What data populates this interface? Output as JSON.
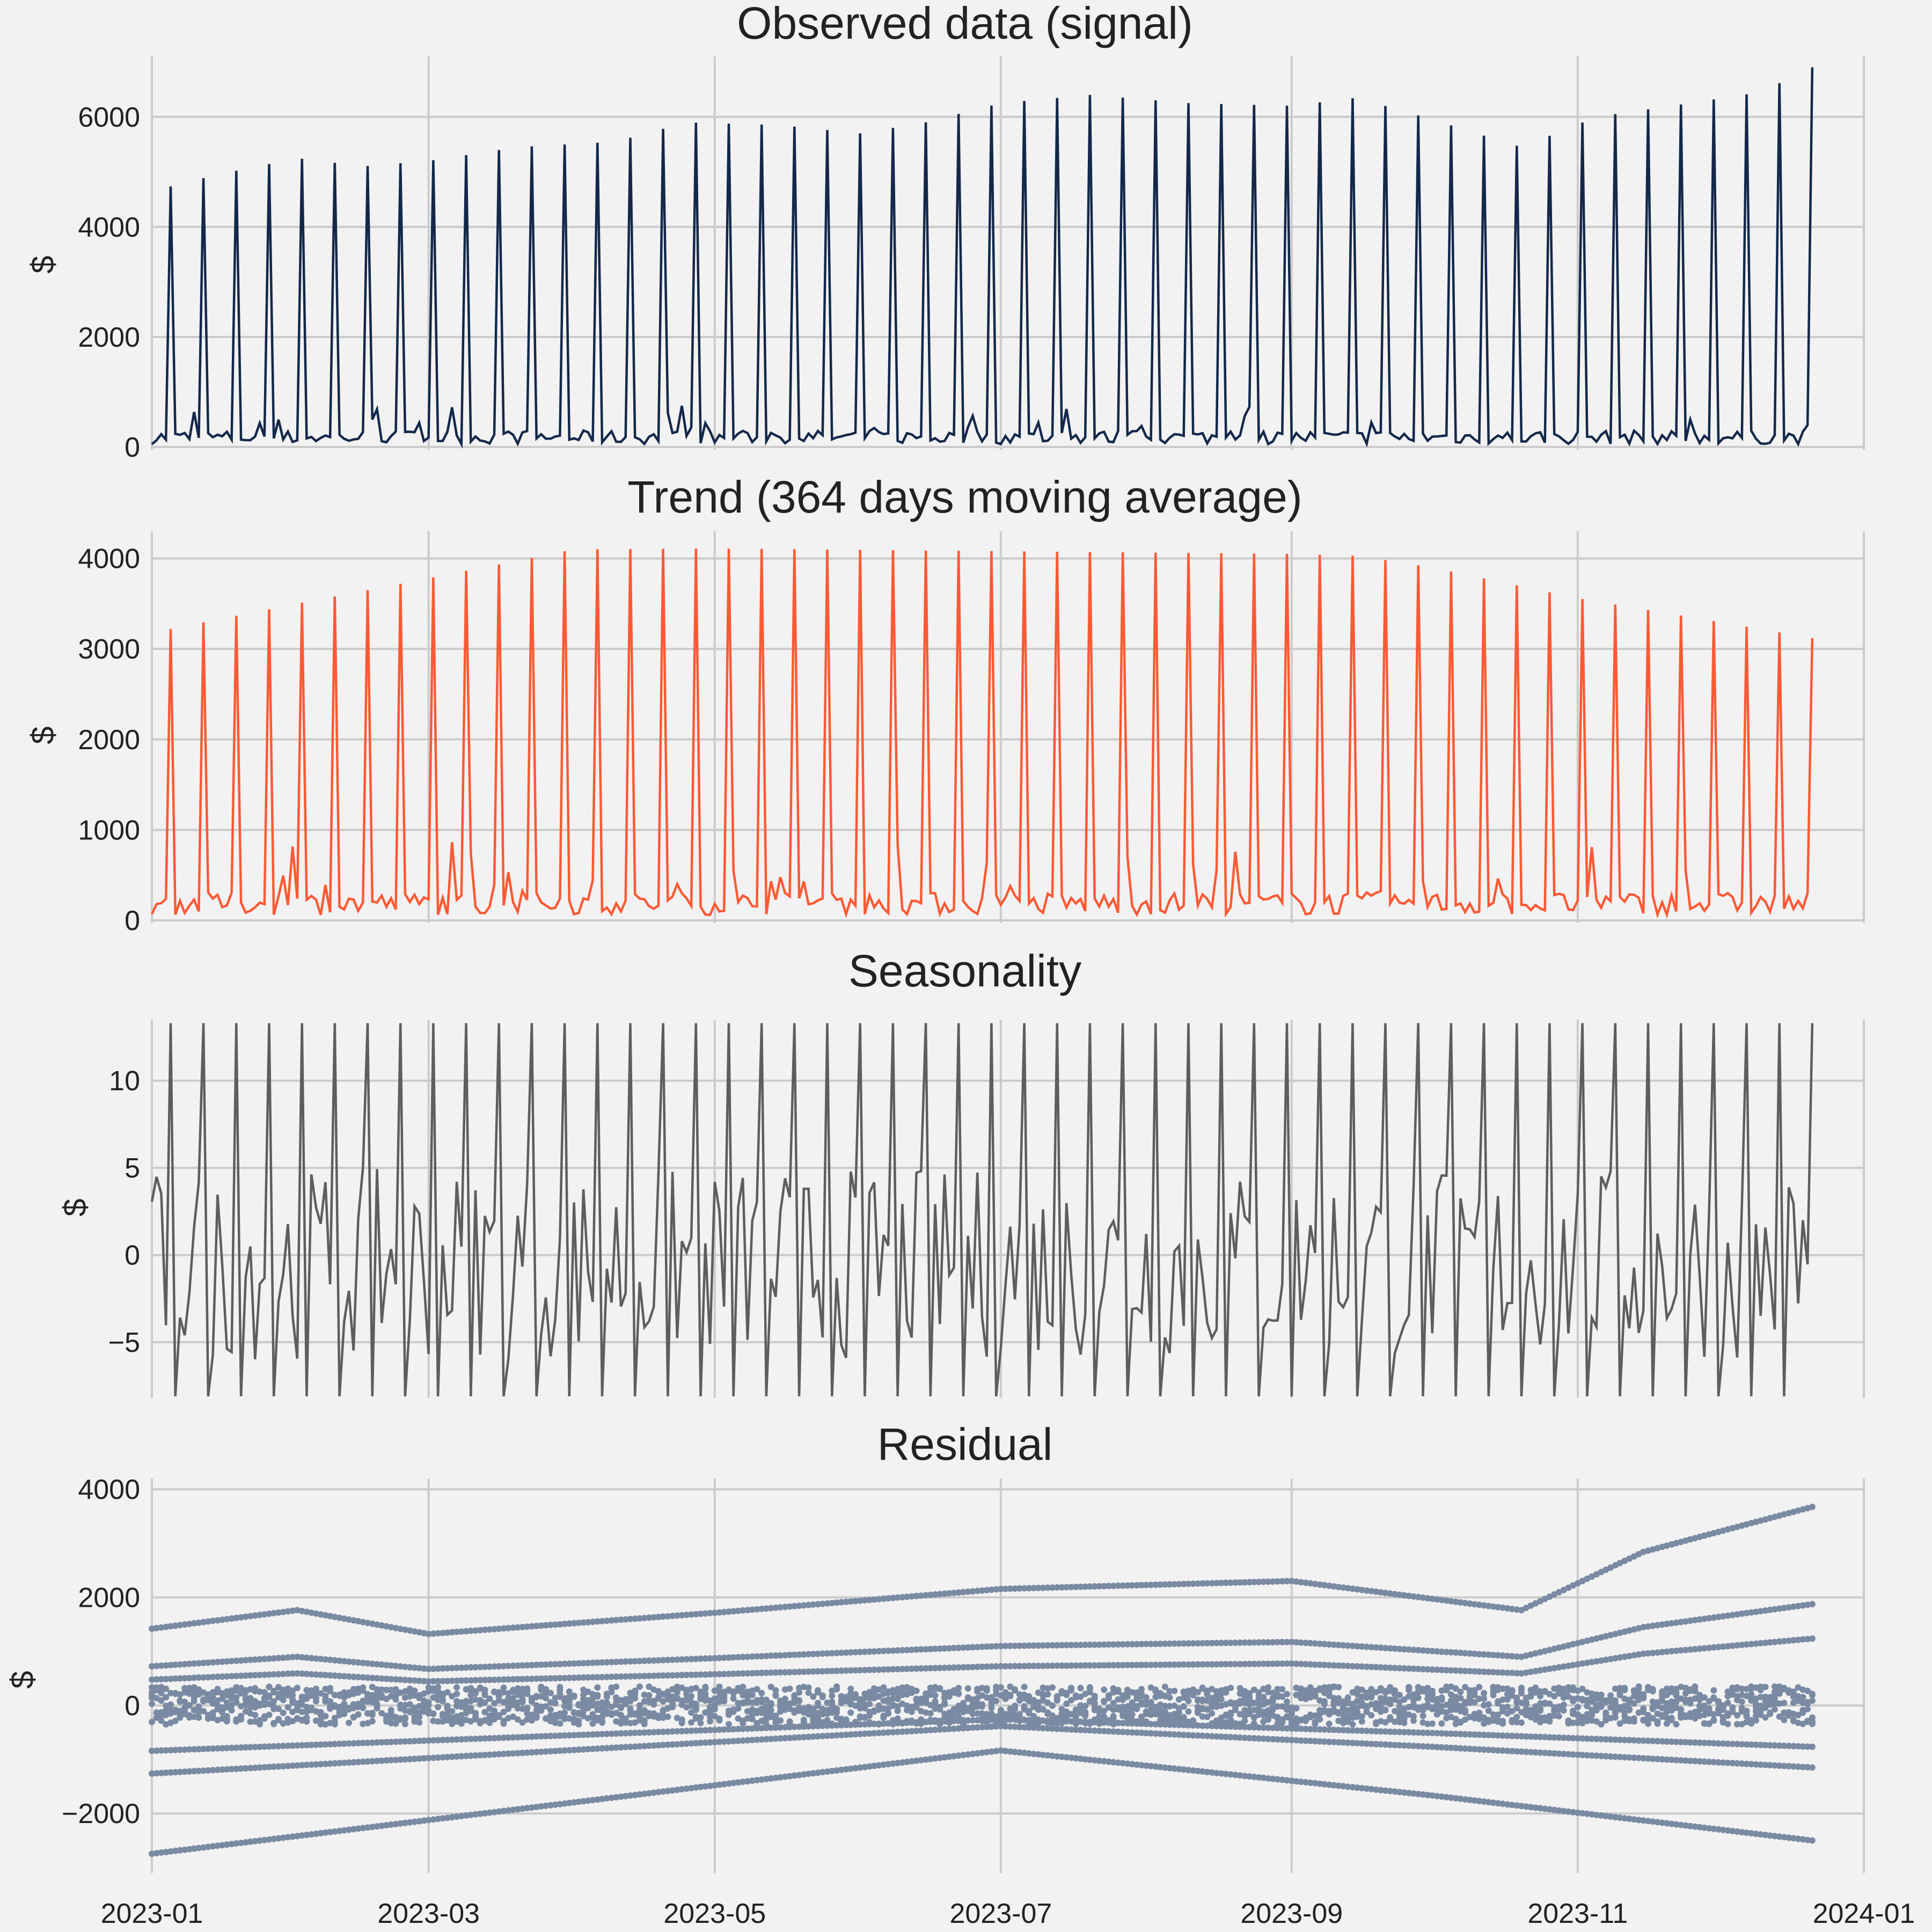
{
  "colors": {
    "background": "#f2f2f2",
    "grid": "#cbcbcb",
    "observed": "#14284b",
    "trend": "#fc5a35",
    "seasonal": "#5e5e5e",
    "residual": "#7a8aa3"
  },
  "chart_data": [
    {
      "type": "line",
      "title": "Observed data (signal)",
      "ylabel": "$",
      "xlim": [
        "2023-01-01",
        "2024-01-01"
      ],
      "ylim": [
        -50,
        7100
      ],
      "yticks": [
        0,
        2000,
        4000,
        6000
      ],
      "ytick_labels": [
        "0",
        "2000",
        "4000",
        "6000"
      ],
      "grid": true,
      "sample_rate": "daily, 2023-01-01 to 2023-12-21",
      "weekly_shape": {
        "peak_weekday": "Thu",
        "low_value": 50
      },
      "level_knots": [
        {
          "x": "2023-01-01",
          "y": 4650
        },
        {
          "x": "2023-01-15",
          "y": 4950
        },
        {
          "x": "2023-02-01",
          "y": 5250
        },
        {
          "x": "2023-02-15",
          "y": 5100
        },
        {
          "x": "2023-03-01",
          "y": 5200
        },
        {
          "x": "2023-03-20",
          "y": 5450
        },
        {
          "x": "2023-04-10",
          "y": 5550
        },
        {
          "x": "2023-04-25",
          "y": 5900
        },
        {
          "x": "2023-05-15",
          "y": 5850
        },
        {
          "x": "2023-06-01",
          "y": 5700
        },
        {
          "x": "2023-06-15",
          "y": 5900
        },
        {
          "x": "2023-07-01",
          "y": 6250
        },
        {
          "x": "2023-07-20",
          "y": 6400
        },
        {
          "x": "2023-08-10",
          "y": 6250
        },
        {
          "x": "2023-09-01",
          "y": 6200
        },
        {
          "x": "2023-09-15",
          "y": 6350
        },
        {
          "x": "2023-10-01",
          "y": 5950
        },
        {
          "x": "2023-10-20",
          "y": 5450
        },
        {
          "x": "2023-11-05",
          "y": 6000
        },
        {
          "x": "2023-11-25",
          "y": 6250
        },
        {
          "x": "2023-12-10",
          "y": 6450
        },
        {
          "x": "2023-12-21",
          "y": 6900
        }
      ]
    },
    {
      "type": "line",
      "title": "Trend (364 days moving average)",
      "ylabel": "$",
      "xlim": [
        "2023-01-01",
        "2024-01-01"
      ],
      "ylim": [
        -30,
        4300
      ],
      "yticks": [
        0,
        1000,
        2000,
        3000,
        4000
      ],
      "ytick_labels": [
        "0",
        "1000",
        "2000",
        "3000",
        "4000"
      ],
      "grid": true,
      "sample_rate": "daily, 2023-01-01 to 2023-12-21",
      "weekly_shape": {
        "peak_weekday": "Thu",
        "low_value": 60
      },
      "level_knots": [
        {
          "x": "2023-01-01",
          "y": 3180
        },
        {
          "x": "2023-02-01",
          "y": 3500
        },
        {
          "x": "2023-03-01",
          "y": 3780
        },
        {
          "x": "2023-04-01",
          "y": 4100
        },
        {
          "x": "2023-05-01",
          "y": 4110
        },
        {
          "x": "2023-07-01",
          "y": 4080
        },
        {
          "x": "2023-09-01",
          "y": 4050
        },
        {
          "x": "2023-09-15",
          "y": 4030
        },
        {
          "x": "2023-10-01",
          "y": 3900
        },
        {
          "x": "2023-11-01",
          "y": 3560
        },
        {
          "x": "2023-12-01",
          "y": 3300
        },
        {
          "x": "2023-12-21",
          "y": 3120
        }
      ]
    },
    {
      "type": "line",
      "title": "Seasonality",
      "ylabel": "$",
      "xlim": [
        "2023-01-01",
        "2024-01-01"
      ],
      "ylim": [
        -8.2,
        13.5
      ],
      "yticks": [
        -5,
        0,
        5,
        10
      ],
      "ytick_labels": [
        "−5",
        "0",
        "5",
        "10"
      ],
      "grid": true,
      "sample_rate": "daily, 2023-01-01 to 2023-12-21",
      "weekly_shape": {
        "peak_weekday": "Thu",
        "high_value": 13.3,
        "low_value": -8.1,
        "other_range": [
          -6,
          5
        ]
      }
    },
    {
      "type": "scatter",
      "title": "Residual",
      "ylabel": "$",
      "xlim": [
        "2023-01-01",
        "2024-01-01"
      ],
      "ylim": [
        -3100,
        4200
      ],
      "yticks": [
        -2000,
        0,
        2000,
        4000
      ],
      "ytick_labels": [
        "−2000",
        "0",
        "2000",
        "4000"
      ],
      "grid": true,
      "sample_rate": "daily, 2023-01-01 to 2023-12-21",
      "lower_envelope": [
        {
          "x": "2023-01-01",
          "y": -2800
        },
        {
          "x": "2023-07-01",
          "y": -850
        },
        {
          "x": "2023-10-01",
          "y": -1700
        },
        {
          "x": "2023-12-21",
          "y": -2550
        }
      ],
      "upper_envelope": [
        {
          "x": "2023-01-01",
          "y": 1450
        },
        {
          "x": "2023-02-01",
          "y": 1800
        },
        {
          "x": "2023-03-01",
          "y": 1350
        },
        {
          "x": "2023-05-01",
          "y": 1750
        },
        {
          "x": "2023-07-01",
          "y": 2200
        },
        {
          "x": "2023-09-01",
          "y": 2350
        },
        {
          "x": "2023-10-20",
          "y": 1800
        },
        {
          "x": "2023-11-15",
          "y": 2900
        },
        {
          "x": "2023-12-21",
          "y": 3750
        }
      ]
    }
  ],
  "x_axis": {
    "ticks": [
      "2023-01-01",
      "2023-03-01",
      "2023-05-01",
      "2023-07-01",
      "2023-09-01",
      "2023-11-01",
      "2024-01-01"
    ],
    "tick_labels": [
      "2023-01",
      "2023-03",
      "2023-05",
      "2023-07",
      "2023-09",
      "2023-11",
      "2024-01"
    ]
  }
}
